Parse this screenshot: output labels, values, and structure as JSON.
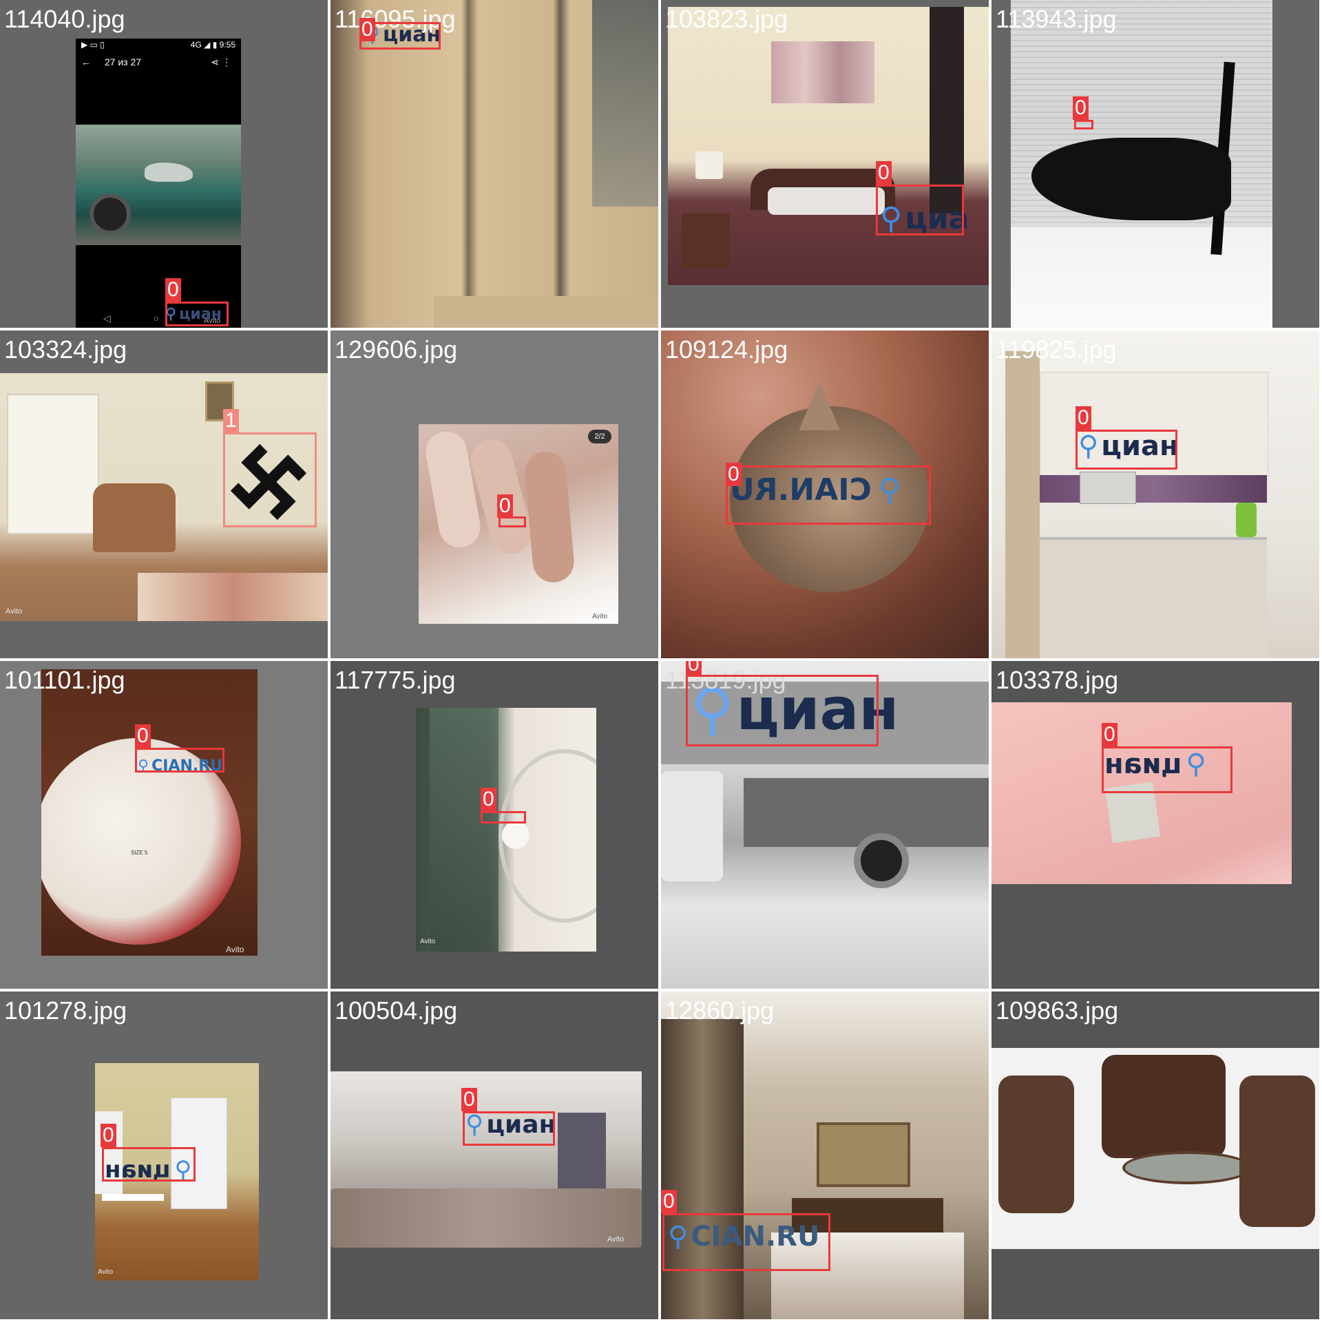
{
  "tiles": [
    {
      "filename": "114040.jpg",
      "label": "0",
      "watermark": "циан",
      "phone_status": "4G ◢ ▮ 9:55",
      "phone_title": "27 из 27",
      "caption": "Avito"
    },
    {
      "filename": "116095.jpg",
      "label": "0",
      "watermark": "циан"
    },
    {
      "filename": "103823.jpg",
      "label": "0",
      "watermark": "циа"
    },
    {
      "filename": "113943.jpg",
      "label": "0"
    },
    {
      "filename": "103324.jpg",
      "label": "1",
      "caption": "Avito"
    },
    {
      "filename": "129606.jpg",
      "label": "0",
      "counter": "2/2",
      "caption": "Avito"
    },
    {
      "filename": "109124.jpg",
      "label": "0",
      "watermark": "CIAN.RU"
    },
    {
      "filename": "119825.jpg",
      "label": "0",
      "watermark": "циан"
    },
    {
      "filename": "101101.jpg",
      "label": "0",
      "watermark": "CIAN.RU",
      "ball_text": "SIZE 5",
      "caption": "Avito"
    },
    {
      "filename": "117775.jpg",
      "label": "0",
      "caption": "Avito"
    },
    {
      "filename": "113819.jpg",
      "label": "0",
      "watermark": "циан"
    },
    {
      "filename": "103378.jpg",
      "label": "0",
      "watermark": "циан"
    },
    {
      "filename": "101278.jpg",
      "label": "0",
      "watermark": "циан",
      "caption": "Avito"
    },
    {
      "filename": "100504.jpg",
      "label": "0",
      "watermark": "циан",
      "caption": "Avito"
    },
    {
      "filename": "12860.jpg",
      "label": "0",
      "watermark": "CIAN.RU"
    },
    {
      "filename": "109863.jpg"
    }
  ],
  "colors": {
    "box_class0": "#e8393c",
    "box_class1": "#f08a80",
    "pad_dark": "#555555",
    "pad_light": "#7b7b7b"
  }
}
